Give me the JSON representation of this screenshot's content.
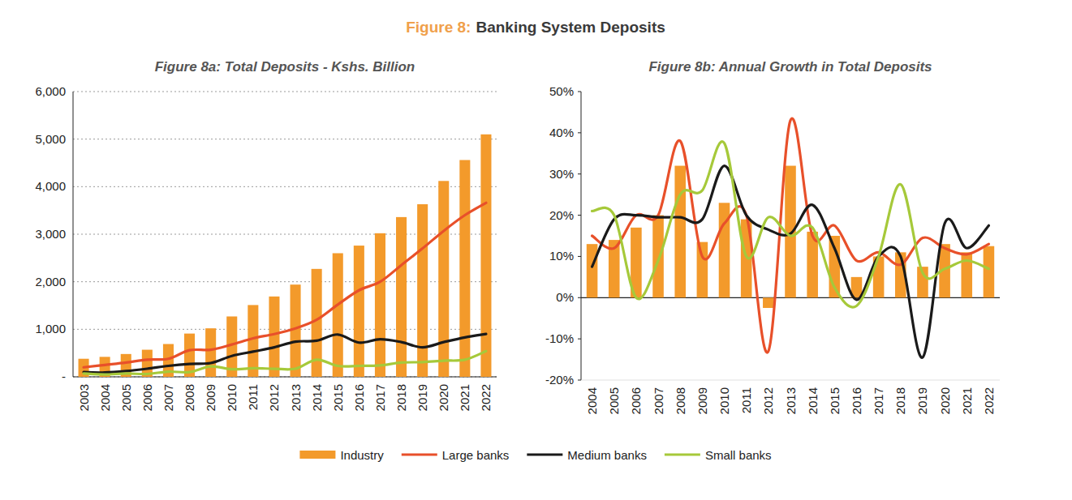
{
  "figure": {
    "label": "Figure 8:",
    "title": "Banking System Deposits"
  },
  "chart_data": [
    {
      "type": "bar",
      "title": "Figure 8a: Total Deposits - Kshs. Billion",
      "categories": [
        "2003",
        "2004",
        "2005",
        "2006",
        "2007",
        "2008",
        "2009",
        "2010",
        "2011",
        "2012",
        "2013",
        "2014",
        "2015",
        "2016",
        "2017",
        "2018",
        "2019",
        "2020",
        "2021",
        "2022"
      ],
      "ylim": [
        0,
        6000
      ],
      "yticks": [
        {
          "value": 0,
          "label": "-"
        },
        {
          "value": 1000,
          "label": "1,000"
        },
        {
          "value": 2000,
          "label": "2,000"
        },
        {
          "value": 3000,
          "label": "3,000"
        },
        {
          "value": 4000,
          "label": "4,000"
        },
        {
          "value": 5000,
          "label": "5,000"
        },
        {
          "value": 6000,
          "label": "6,000"
        }
      ],
      "grid": true,
      "legend": "bottom",
      "series": [
        {
          "name": "Industry",
          "type": "bar",
          "color": "#f39a2b",
          "values": [
            380,
            420,
            480,
            570,
            690,
            910,
            1020,
            1270,
            1510,
            1690,
            1940,
            2270,
            2600,
            2760,
            3020,
            3360,
            3630,
            4120,
            4560,
            5100
          ]
        },
        {
          "name": "Large banks",
          "type": "line",
          "line_style": "smooth",
          "color": "#e8502a",
          "values": [
            200,
            250,
            300,
            360,
            380,
            560,
            570,
            680,
            810,
            900,
            1020,
            1200,
            1520,
            1820,
            2000,
            2350,
            2700,
            3070,
            3400,
            3660
          ]
        },
        {
          "name": "Medium banks",
          "type": "line",
          "line_style": "smooth",
          "color": "#1a1a1a",
          "values": [
            100,
            90,
            120,
            170,
            230,
            270,
            290,
            440,
            530,
            620,
            740,
            760,
            890,
            720,
            790,
            730,
            620,
            730,
            830,
            900
          ]
        },
        {
          "name": "Small banks",
          "type": "line",
          "line_style": "smooth",
          "color": "#a6c93a",
          "values": [
            70,
            50,
            70,
            60,
            110,
            100,
            220,
            160,
            180,
            170,
            170,
            360,
            230,
            230,
            240,
            300,
            310,
            340,
            360,
            540
          ]
        }
      ]
    },
    {
      "type": "bar",
      "title": "Figure 8b: Annual Growth in Total Deposits",
      "categories": [
        "2004",
        "2005",
        "2006",
        "2007",
        "2008",
        "2009",
        "2010",
        "2011",
        "2012",
        "2013",
        "2014",
        "2015",
        "2016",
        "2017",
        "2018",
        "2019",
        "2020",
        "2021",
        "2022"
      ],
      "ylim": [
        -20,
        50
      ],
      "yticks": [
        {
          "value": -20,
          "label": "-20%"
        },
        {
          "value": -10,
          "label": "-10%"
        },
        {
          "value": 0,
          "label": "0%"
        },
        {
          "value": 10,
          "label": "10%"
        },
        {
          "value": 20,
          "label": "20%"
        },
        {
          "value": 30,
          "label": "30%"
        },
        {
          "value": 40,
          "label": "40%"
        },
        {
          "value": 50,
          "label": "50%"
        }
      ],
      "grid": false,
      "series": [
        {
          "name": "Industry",
          "type": "bar",
          "color": "#f39a2b",
          "values": [
            13,
            14,
            17,
            20,
            32,
            13.5,
            23,
            19,
            -2.5,
            32,
            16,
            15,
            5,
            10,
            11,
            7.5,
            13,
            11,
            12.5
          ]
        },
        {
          "name": "Large banks",
          "type": "line",
          "line_style": "smooth",
          "color": "#e8502a",
          "values": [
            15,
            12,
            20,
            20,
            38,
            10,
            18,
            20,
            -13,
            43,
            15,
            17.5,
            9,
            11,
            8,
            14.5,
            12,
            10.5,
            13
          ]
        },
        {
          "name": "Medium banks",
          "type": "line",
          "line_style": "smooth",
          "color": "#1a1a1a",
          "values": [
            7.5,
            19,
            20,
            19.5,
            19.5,
            19,
            32,
            20,
            16.5,
            15.5,
            22.5,
            12,
            -0.5,
            10,
            10,
            -14.5,
            18,
            12,
            17.5
          ]
        },
        {
          "name": "Small banks",
          "type": "line",
          "line_style": "smooth",
          "color": "#a6c93a",
          "values": [
            21,
            20,
            0,
            9,
            25,
            26,
            37.5,
            10,
            19.5,
            15,
            17,
            2.5,
            -2,
            10,
            27.5,
            6,
            7,
            9,
            7
          ]
        }
      ]
    }
  ]
}
